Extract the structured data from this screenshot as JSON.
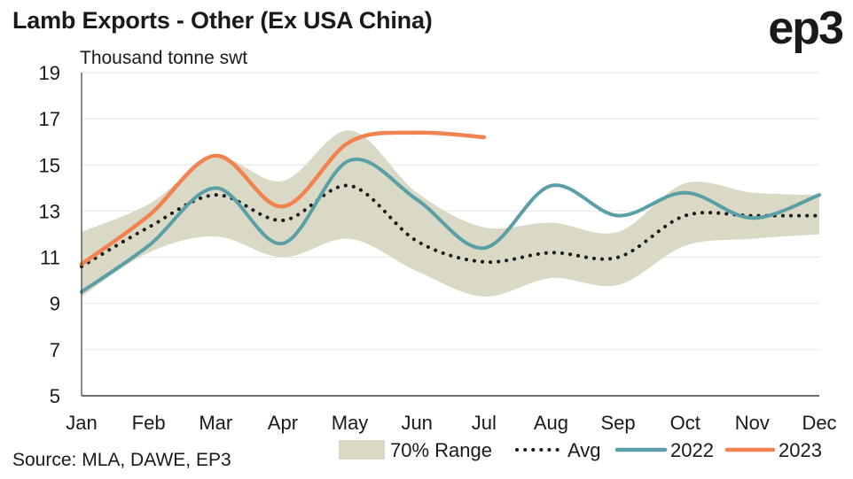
{
  "header": {
    "title": "Lamb Exports - Other (Ex USA China)",
    "logo": "ep3",
    "unit": "Thousand tonne swt"
  },
  "footer": {
    "source": "Source: MLA, DAWE, EP3"
  },
  "colors": {
    "range": "#dad9c6",
    "avg": "#1a1a1a",
    "s2022": "#5a9ea6",
    "s2023": "#f08350",
    "grid": "#e6e6e6",
    "axis": "#1a1a1a"
  },
  "chart_data": {
    "type": "line",
    "title": "Lamb Exports - Other (Ex USA China)",
    "ylabel": "Thousand tonne swt",
    "xlabel": "",
    "ylim": [
      5,
      19
    ],
    "yticks": [
      5,
      7,
      9,
      11,
      13,
      15,
      17,
      19
    ],
    "grid": "horizontal",
    "legend_position": "bottom",
    "categories": [
      "Jan",
      "Feb",
      "Mar",
      "Apr",
      "May",
      "Jun",
      "Jul",
      "Aug",
      "Sep",
      "Oct",
      "Nov",
      "Dec"
    ],
    "range": {
      "name": "70% Range",
      "low": [
        9.3,
        11.2,
        11.9,
        11.0,
        11.8,
        10.4,
        9.3,
        10.1,
        9.8,
        11.5,
        11.8,
        12.0
      ],
      "high": [
        12.1,
        13.3,
        15.3,
        14.3,
        16.5,
        13.8,
        12.3,
        12.5,
        12.1,
        14.2,
        13.8,
        13.7
      ]
    },
    "series": [
      {
        "name": "Avg",
        "values": [
          10.6,
          12.3,
          13.7,
          12.6,
          14.1,
          11.7,
          10.8,
          11.2,
          11.0,
          12.8,
          12.8,
          12.8
        ]
      },
      {
        "name": "2022",
        "values": [
          9.5,
          11.5,
          14.0,
          11.6,
          15.2,
          13.5,
          11.4,
          14.1,
          12.8,
          13.8,
          12.7,
          13.7
        ]
      },
      {
        "name": "2023",
        "values": [
          10.7,
          12.8,
          15.4,
          13.2,
          16.0,
          16.4,
          16.2,
          null,
          null,
          null,
          null,
          null
        ]
      }
    ]
  }
}
